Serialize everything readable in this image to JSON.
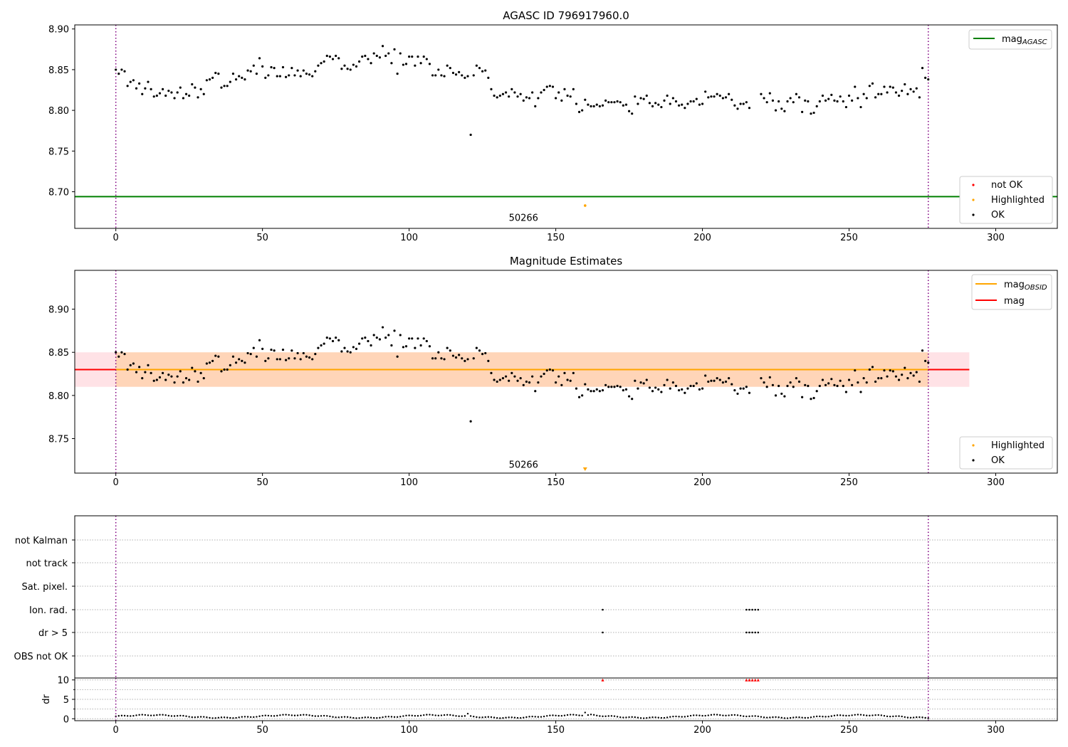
{
  "chart_data": [
    {
      "panel": "agasc",
      "type": "scatter",
      "title": "AGASC ID 796917960.0",
      "xlabel": "",
      "ylabel": "",
      "xlim": [
        -14,
        321
      ],
      "ylim": [
        8.655,
        8.905
      ],
      "xticks": [
        0,
        50,
        100,
        150,
        200,
        250,
        300
      ],
      "yticks": [
        8.7,
        8.75,
        8.8,
        8.85,
        8.9
      ],
      "ytick_labels": [
        "8.70",
        "8.75",
        "8.80",
        "8.85",
        "8.90"
      ],
      "series": [
        {
          "name": "OK",
          "color": "#000000",
          "segments": [
            {
              "x0": 0,
              "n": 215,
              "y": [
                8.85,
                8.845,
                8.85,
                8.848,
                8.83,
                8.835,
                8.837,
                8.827,
                8.833,
                8.82,
                8.827,
                8.835,
                8.826,
                8.817,
                8.818,
                8.821,
                8.826,
                8.818,
                8.824,
                8.822,
                8.815,
                8.822,
                8.828,
                8.815,
                8.82,
                8.818,
                8.832,
                8.828,
                8.816,
                8.826,
                8.82,
                8.837,
                8.838,
                8.84,
                8.846,
                8.845,
                8.828,
                8.83,
                8.83,
                8.835,
                8.845,
                8.838,
                8.842,
                8.84,
                8.838,
                8.849,
                8.848,
                8.855,
                8.845,
                8.864,
                8.854,
                8.84,
                8.843,
                8.853,
                8.852,
                8.842,
                8.842,
                8.853,
                8.841,
                8.843,
                8.852,
                8.843,
                8.849,
                8.842,
                8.849,
                8.845,
                8.844,
                8.842,
                8.848,
                8.855,
                8.858,
                8.86,
                8.867,
                8.866,
                8.863,
                8.867,
                8.864,
                8.851,
                8.855,
                8.851,
                8.85,
                8.856,
                8.854,
                8.86,
                8.866,
                8.867,
                8.863,
                8.858,
                8.87,
                8.867,
                8.865,
                8.879,
                8.867,
                8.87,
                8.858,
                8.875,
                8.845,
                8.87,
                8.856,
                8.857,
                8.866,
                8.866,
                8.855,
                8.866,
                8.858,
                8.866,
                8.863,
                8.857,
                8.843,
                8.843,
                8.85,
                8.843,
                8.842,
                8.855,
                8.852,
                8.846,
                8.844,
                8.847,
                8.843,
                8.84,
                8.842,
                8.77,
                8.843,
                8.855,
                8.852,
                8.848,
                8.849,
                8.84,
                8.826,
                8.818,
                8.816,
                8.818,
                8.82,
                8.822,
                8.817,
                8.826,
                8.822,
                8.817,
                8.82,
                8.812,
                8.816,
                8.815,
                8.822,
                8.805,
                8.815,
                8.822,
                8.825,
                8.829,
                8.83,
                8.829,
                8.815,
                8.822,
                8.812,
                8.826,
                8.818,
                8.817,
                8.826,
                8.808,
                8.798,
                8.8,
                8.813,
                8.807,
                8.805,
                8.805,
                8.807,
                8.805,
                8.806,
                8.812,
                8.81,
                8.81,
                8.81,
                8.811,
                8.81,
                8.806,
                8.807,
                8.799,
                8.796,
                8.817,
                8.808,
                8.815,
                8.814,
                8.818,
                8.809,
                8.805,
                8.809,
                8.807,
                8.804,
                8.812,
                8.818,
                8.808,
                8.815,
                8.811,
                8.806,
                8.807,
                8.803,
                8.808,
                8.811,
                8.811,
                8.814,
                8.807,
                8.808,
                8.823,
                8.816,
                8.817,
                8.817,
                8.82,
                8.818,
                8.815,
                8.816,
                8.82,
                8.813,
                8.806,
                8.802,
                8.808,
                8.808,
                8.81,
                8.803
              ]
            },
            {
              "x0": 220,
              "n": 58,
              "y": [
                8.82,
                8.815,
                8.81,
                8.821,
                8.812,
                8.8,
                8.811,
                8.802,
                8.799,
                8.811,
                8.815,
                8.81,
                8.82,
                8.816,
                8.798,
                8.812,
                8.811,
                8.796,
                8.797,
                8.805,
                8.811,
                8.818,
                8.812,
                8.814,
                8.819,
                8.812,
                8.811,
                8.817,
                8.811,
                8.804,
                8.818,
                8.812,
                8.829,
                8.815,
                8.804,
                8.82,
                8.815,
                8.83,
                8.833,
                8.816,
                8.82,
                8.82,
                8.829,
                8.822,
                8.829,
                8.828,
                8.822,
                8.818,
                8.824,
                8.832,
                8.82,
                8.826,
                8.823,
                8.827,
                8.816,
                8.852,
                8.84,
                8.838
              ]
            }
          ]
        },
        {
          "name": "Highlighted",
          "color": "#ffa500",
          "points": [
            [
              160,
              8.683
            ]
          ]
        },
        {
          "name": "not OK",
          "color": "#ff0000",
          "points": []
        }
      ],
      "lines": [
        {
          "name": "mag_AGASC",
          "color": "#008000",
          "y": 8.694
        }
      ],
      "vlines": [
        0,
        277
      ],
      "annotation": {
        "text": "50266",
        "x": 139,
        "y": 8.66
      },
      "legends": [
        {
          "position": "upper right",
          "entries": [
            {
              "label": "mag",
              "subscript": "AGASC",
              "kind": "line",
              "color": "#008000"
            }
          ]
        },
        {
          "position": "lower right",
          "entries": [
            {
              "label": "not OK",
              "kind": "dot",
              "color": "#ff0000"
            },
            {
              "label": "Highlighted",
              "kind": "dot",
              "color": "#ffa500"
            },
            {
              "label": "OK",
              "kind": "dot",
              "color": "#000000"
            }
          ]
        }
      ]
    },
    {
      "panel": "estimates",
      "type": "scatter",
      "title": "Magnitude Estimates",
      "xlabel": "",
      "ylabel": "",
      "xlim": [
        -14,
        321
      ],
      "ylim": [
        8.71,
        8.945
      ],
      "xticks": [
        0,
        50,
        100,
        150,
        200,
        250,
        300
      ],
      "yticks": [
        8.75,
        8.8,
        8.85,
        8.9
      ],
      "ytick_labels": [
        "8.75",
        "8.80",
        "8.85",
        "8.90"
      ],
      "bands": [
        {
          "x": [
            -14,
            291
          ],
          "y": [
            8.81,
            8.85
          ],
          "color": "#ffb6c1",
          "alpha": 0.4
        },
        {
          "x": [
            0,
            277
          ],
          "y": [
            8.81,
            8.85
          ],
          "color": "#ffa500",
          "alpha": 0.2
        }
      ],
      "lines": [
        {
          "name": "mag",
          "color": "#ff0000",
          "y": 8.83,
          "x": [
            -14,
            291
          ]
        },
        {
          "name": "mag_OBSID",
          "color": "#ffa500",
          "y": 8.83,
          "x": [
            0,
            277
          ]
        }
      ],
      "highlight_marker": {
        "x": 160,
        "color": "#ffa500",
        "shape": "down-triangle"
      },
      "vlines": [
        0,
        277
      ],
      "annotation": {
        "text": "50266",
        "x": 139,
        "y": 8.712
      },
      "legends": [
        {
          "position": "upper right",
          "entries": [
            {
              "label": "mag",
              "subscript": "OBSID",
              "kind": "line",
              "color": "#ffa500"
            },
            {
              "label": "mag",
              "kind": "line",
              "color": "#ff0000"
            }
          ]
        },
        {
          "position": "lower right",
          "entries": [
            {
              "label": "Highlighted",
              "kind": "dot",
              "color": "#ffa500"
            },
            {
              "label": "OK",
              "kind": "dot",
              "color": "#000000"
            }
          ]
        }
      ]
    },
    {
      "panel": "flags",
      "type": "scatter",
      "xlim": [
        -14,
        321
      ],
      "xticks": [
        0,
        50,
        100,
        150,
        200,
        250,
        300
      ],
      "categories": [
        "not Kalman",
        "not track",
        "Sat. pixel.",
        "Ion. rad.",
        "dr > 5",
        "OBS not OK"
      ],
      "flag_points": {
        "Ion. rad.": [
          166,
          215,
          216,
          217,
          218,
          219
        ],
        "dr > 5": [
          166,
          215,
          216,
          217,
          218,
          219
        ]
      },
      "vlines": [
        0,
        277
      ]
    },
    {
      "panel": "dr",
      "type": "scatter",
      "xlim": [
        -14,
        321
      ],
      "ylim": [
        -0.5,
        10.5
      ],
      "ylabel": "dr",
      "yticks": [
        0,
        5,
        10
      ],
      "xticks": [
        0,
        50,
        100,
        150,
        200,
        250,
        300
      ],
      "xtick_labels": [
        "0",
        "50",
        "100",
        "150",
        "200",
        "250",
        "300"
      ],
      "series": [
        {
          "name": "dr",
          "color": "#000000",
          "x_range": [
            0,
            277
          ],
          "base": 0.6,
          "spikes": [
            [
              120,
              1.3
            ],
            [
              160,
              1.6
            ],
            [
              162,
              1.1
            ],
            [
              163,
              1.0
            ]
          ]
        },
        {
          "name": "dr > 10",
          "color": "#ff0000",
          "marker": "up-triangle",
          "x": [
            166,
            215,
            216,
            217,
            218,
            219
          ],
          "y": 10
        }
      ],
      "vlines": [
        0,
        277
      ]
    }
  ]
}
